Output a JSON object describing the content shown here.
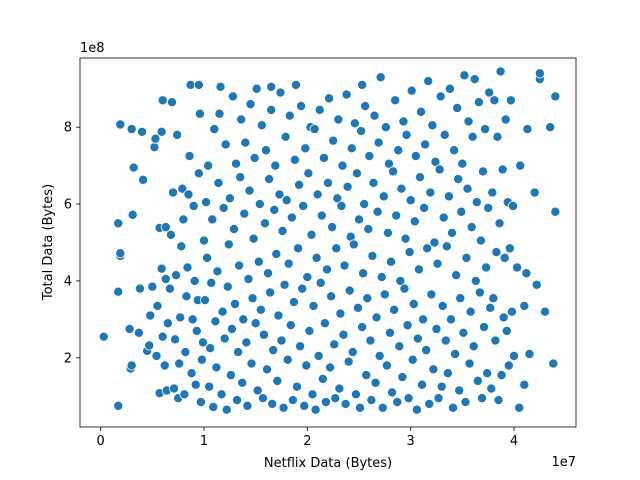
{
  "chart_data": {
    "type": "scatter",
    "title": "",
    "xlabel": "Netflix Data (Bytes)",
    "ylabel": "Total Data (Bytes)",
    "x_offset_label": "1e7",
    "y_offset_label": "1e8",
    "xlim": [
      -0.2,
      4.6
    ],
    "ylim": [
      0.2,
      9.8
    ],
    "xticks": [
      0,
      1,
      2,
      3,
      4
    ],
    "yticks": [
      2,
      4,
      6,
      8
    ],
    "xtick_labels": [
      "0",
      "1",
      "2",
      "3",
      "4"
    ],
    "ytick_labels": [
      "2",
      "4",
      "6",
      "8"
    ],
    "grid": false,
    "marker_color": "#1f77b4",
    "marker_edge_color": "#ffffff",
    "points": [
      [
        0.03,
        2.55
      ],
      [
        0.17,
        0.75
      ],
      [
        0.17,
        3.72
      ],
      [
        0.19,
        4.65
      ],
      [
        0.19,
        4.72
      ],
      [
        0.17,
        5.5
      ],
      [
        0.19,
        8.07
      ],
      [
        0.28,
        2.75
      ],
      [
        0.29,
        1.72
      ],
      [
        0.3,
        1.8
      ],
      [
        0.31,
        5.72
      ],
      [
        0.32,
        6.95
      ],
      [
        0.3,
        7.95
      ],
      [
        0.37,
        2.65
      ],
      [
        0.38,
        3.8
      ],
      [
        0.4,
        7.88
      ],
      [
        0.41,
        6.63
      ],
      [
        0.45,
        2.18
      ],
      [
        0.47,
        2.32
      ],
      [
        0.48,
        3.1
      ],
      [
        0.5,
        3.85
      ],
      [
        0.52,
        7.48
      ],
      [
        0.53,
        7.7
      ],
      [
        0.54,
        2.05
      ],
      [
        0.55,
        3.35
      ],
      [
        0.57,
        5.38
      ],
      [
        0.57,
        1.08
      ],
      [
        0.59,
        4.32
      ],
      [
        0.59,
        7.88
      ],
      [
        0.6,
        8.7
      ],
      [
        0.6,
        2.55
      ],
      [
        0.62,
        1.8
      ],
      [
        0.63,
        4.05
      ],
      [
        0.63,
        5.4
      ],
      [
        0.64,
        1.15
      ],
      [
        0.65,
        2.9
      ],
      [
        0.67,
        3.8
      ],
      [
        0.68,
        5.2
      ],
      [
        0.69,
        8.65
      ],
      [
        0.7,
        6.3
      ],
      [
        0.71,
        1.2
      ],
      [
        0.72,
        2.48
      ],
      [
        0.73,
        4.15
      ],
      [
        0.74,
        7.8
      ],
      [
        0.75,
        0.95
      ],
      [
        0.76,
        1.85
      ],
      [
        0.77,
        3.05
      ],
      [
        0.78,
        4.9
      ],
      [
        0.79,
        6.4
      ],
      [
        0.8,
        5.6
      ],
      [
        0.81,
        1.05
      ],
      [
        0.82,
        2.15
      ],
      [
        0.83,
        3.6
      ],
      [
        0.84,
        4.35
      ],
      [
        0.85,
        6.25
      ],
      [
        0.86,
        7.25
      ],
      [
        0.87,
        9.1
      ],
      [
        0.88,
        1.6
      ],
      [
        0.89,
        3.0
      ],
      [
        0.9,
        5.95
      ],
      [
        0.91,
        4.0
      ],
      [
        0.92,
        1.3
      ],
      [
        0.93,
        2.7
      ],
      [
        0.94,
        3.5
      ],
      [
        0.95,
        6.8
      ],
      [
        0.96,
        8.35
      ],
      [
        0.97,
        0.85
      ],
      [
        0.98,
        1.95
      ],
      [
        0.99,
        2.4
      ],
      [
        1.0,
        5.05
      ],
      [
        1.01,
        3.5
      ],
      [
        1.02,
        6.05
      ],
      [
        1.03,
        4.6
      ],
      [
        1.04,
        7.0
      ],
      [
        1.05,
        1.25
      ],
      [
        1.06,
        2.25
      ],
      [
        1.07,
        3.95
      ],
      [
        1.08,
        5.6
      ],
      [
        1.09,
        0.72
      ],
      [
        1.1,
        7.95
      ],
      [
        1.11,
        2.95
      ],
      [
        1.12,
        1.75
      ],
      [
        1.13,
        4.25
      ],
      [
        1.14,
        6.55
      ],
      [
        1.15,
        8.35
      ],
      [
        1.16,
        9.05
      ],
      [
        1.17,
        1.05
      ],
      [
        1.18,
        3.2
      ],
      [
        1.19,
        5.9
      ],
      [
        1.2,
        2.5
      ],
      [
        1.21,
        7.55
      ],
      [
        1.22,
        0.65
      ],
      [
        1.23,
        3.85
      ],
      [
        1.24,
        4.95
      ],
      [
        1.25,
        6.15
      ],
      [
        1.26,
        1.55
      ],
      [
        1.27,
        2.75
      ],
      [
        1.28,
        8.8
      ],
      [
        1.29,
        5.35
      ],
      [
        1.3,
        3.4
      ],
      [
        1.31,
        7.05
      ],
      [
        1.32,
        0.9
      ],
      [
        1.33,
        2.15
      ],
      [
        1.34,
        4.4
      ],
      [
        1.35,
        6.7
      ],
      [
        1.36,
        8.2
      ],
      [
        1.37,
        1.35
      ],
      [
        1.38,
        3.0
      ],
      [
        1.39,
        5.75
      ],
      [
        1.4,
        7.6
      ],
      [
        1.41,
        2.4
      ],
      [
        1.42,
        0.75
      ],
      [
        1.43,
        4.05
      ],
      [
        1.44,
        6.35
      ],
      [
        1.45,
        8.6
      ],
      [
        1.46,
        1.85
      ],
      [
        1.47,
        3.55
      ],
      [
        1.48,
        5.1
      ],
      [
        1.49,
        7.2
      ],
      [
        1.5,
        2.9
      ],
      [
        1.51,
        9.0
      ],
      [
        1.52,
        1.15
      ],
      [
        1.53,
        4.5
      ],
      [
        1.54,
        6.0
      ],
      [
        1.55,
        3.25
      ],
      [
        1.56,
        8.05
      ],
      [
        1.57,
        0.95
      ],
      [
        1.58,
        2.6
      ],
      [
        1.59,
        5.5
      ],
      [
        1.6,
        7.4
      ],
      [
        1.61,
        1.7
      ],
      [
        1.62,
        4.2
      ],
      [
        1.63,
        6.65
      ],
      [
        1.64,
        3.7
      ],
      [
        1.65,
        8.45
      ],
      [
        1.66,
        0.8
      ],
      [
        1.67,
        2.2
      ],
      [
        1.68,
        5.85
      ],
      [
        1.69,
        7.0
      ],
      [
        1.7,
        4.7
      ],
      [
        1.71,
        1.4
      ],
      [
        1.72,
        3.1
      ],
      [
        1.73,
        6.25
      ],
      [
        1.74,
        8.9
      ],
      [
        1.75,
        2.45
      ],
      [
        1.76,
        5.3
      ],
      [
        1.77,
        0.7
      ],
      [
        1.78,
        3.9
      ],
      [
        1.79,
        7.75
      ],
      [
        1.8,
        6.1
      ],
      [
        1.81,
        1.95
      ],
      [
        1.82,
        4.45
      ],
      [
        1.83,
        8.3
      ],
      [
        1.84,
        2.85
      ],
      [
        1.85,
        5.65
      ],
      [
        1.86,
        0.9
      ],
      [
        1.87,
        3.45
      ],
      [
        1.88,
        7.15
      ],
      [
        1.89,
        9.1
      ],
      [
        1.9,
        1.25
      ],
      [
        1.91,
        4.85
      ],
      [
        1.92,
        6.5
      ],
      [
        1.93,
        2.3
      ],
      [
        1.94,
        8.55
      ],
      [
        1.95,
        3.8
      ],
      [
        1.96,
        5.95
      ],
      [
        1.97,
        0.75
      ],
      [
        1.98,
        7.45
      ],
      [
        1.99,
        1.8
      ],
      [
        2.0,
        4.1
      ],
      [
        2.01,
        6.8
      ],
      [
        2.02,
        2.7
      ],
      [
        2.03,
        8.0
      ],
      [
        2.04,
        5.2
      ],
      [
        2.05,
        1.05
      ],
      [
        2.06,
        3.35
      ],
      [
        2.07,
        7.95
      ],
      [
        2.08,
        0.65
      ],
      [
        2.09,
        4.6
      ],
      [
        2.1,
        6.25
      ],
      [
        2.11,
        2.05
      ],
      [
        2.12,
        8.45
      ],
      [
        2.13,
        3.95
      ],
      [
        2.14,
        5.7
      ],
      [
        2.15,
        1.45
      ],
      [
        2.16,
        7.2
      ],
      [
        2.17,
        2.9
      ],
      [
        2.18,
        0.85
      ],
      [
        2.19,
        4.3
      ],
      [
        2.2,
        6.55
      ],
      [
        2.21,
        8.75
      ],
      [
        2.22,
        1.75
      ],
      [
        2.23,
        3.6
      ],
      [
        2.24,
        5.4
      ],
      [
        2.25,
        7.65
      ],
      [
        2.26,
        2.35
      ],
      [
        2.27,
        0.95
      ],
      [
        2.28,
        4.85
      ],
      [
        2.29,
        6.15
      ],
      [
        2.3,
        8.2
      ],
      [
        2.31,
        1.2
      ],
      [
        2.32,
        3.15
      ],
      [
        2.33,
        5.95
      ],
      [
        2.34,
        7.0
      ],
      [
        2.35,
        2.6
      ],
      [
        2.36,
        4.4
      ],
      [
        2.37,
        0.8
      ],
      [
        2.38,
        8.85
      ],
      [
        2.39,
        6.45
      ],
      [
        2.4,
        1.9
      ],
      [
        2.41,
        3.75
      ],
      [
        2.42,
        5.15
      ],
      [
        2.43,
        7.45
      ],
      [
        2.44,
        2.15
      ],
      [
        2.45,
        4.95
      ],
      [
        2.46,
        8.1
      ],
      [
        2.47,
        1.05
      ],
      [
        2.48,
        6.8
      ],
      [
        2.49,
        3.3
      ],
      [
        2.5,
        5.6
      ],
      [
        2.51,
        0.7
      ],
      [
        2.52,
        7.9
      ],
      [
        2.53,
        2.8
      ],
      [
        2.54,
        4.2
      ],
      [
        2.55,
        6.0
      ],
      [
        2.56,
        8.55
      ],
      [
        2.57,
        1.55
      ],
      [
        2.58,
        3.55
      ],
      [
        2.59,
        5.35
      ],
      [
        2.6,
        7.25
      ],
      [
        2.61,
        2.45
      ],
      [
        2.62,
        0.9
      ],
      [
        2.63,
        4.65
      ],
      [
        2.64,
        6.55
      ],
      [
        2.65,
        8.3
      ],
      [
        2.66,
        1.35
      ],
      [
        2.67,
        3.05
      ],
      [
        2.68,
        5.8
      ],
      [
        2.69,
        7.6
      ],
      [
        2.7,
        2.05
      ],
      [
        2.71,
        9.3
      ],
      [
        2.72,
        4.1
      ],
      [
        2.73,
        0.7
      ],
      [
        2.74,
        6.2
      ],
      [
        2.75,
        3.65
      ],
      [
        2.76,
        8.0
      ],
      [
        2.77,
        1.8
      ],
      [
        2.78,
        5.25
      ],
      [
        2.79,
        7.05
      ],
      [
        2.8,
        2.65
      ],
      [
        2.81,
        4.5
      ],
      [
        2.82,
        1.1
      ],
      [
        2.83,
        6.85
      ],
      [
        2.84,
        3.25
      ],
      [
        2.85,
        8.7
      ],
      [
        2.86,
        5.7
      ],
      [
        2.87,
        0.85
      ],
      [
        2.88,
        7.4
      ],
      [
        2.89,
        2.3
      ],
      [
        2.9,
        4.0
      ],
      [
        2.91,
        6.4
      ],
      [
        2.92,
        1.5
      ],
      [
        2.93,
        8.15
      ],
      [
        2.94,
        3.8
      ],
      [
        2.95,
        5.1
      ],
      [
        2.96,
        7.8
      ],
      [
        2.97,
        2.85
      ],
      [
        2.98,
        0.95
      ],
      [
        2.99,
        4.75
      ],
      [
        3.0,
        6.1
      ],
      [
        3.01,
        8.95
      ],
      [
        3.02,
        1.95
      ],
      [
        3.03,
        3.4
      ],
      [
        3.04,
        5.55
      ],
      [
        3.05,
        7.25
      ],
      [
        3.06,
        0.65
      ],
      [
        3.07,
        2.5
      ],
      [
        3.08,
        4.3
      ],
      [
        3.09,
        6.7
      ],
      [
        3.1,
        8.4
      ],
      [
        3.11,
        1.3
      ],
      [
        3.12,
        3.0
      ],
      [
        3.13,
        5.9
      ],
      [
        3.14,
        7.55
      ],
      [
        3.15,
        2.2
      ],
      [
        3.16,
        4.85
      ],
      [
        3.17,
        9.2
      ],
      [
        3.18,
        0.8
      ],
      [
        3.19,
        6.3
      ],
      [
        3.2,
        3.65
      ],
      [
        3.21,
        8.05
      ],
      [
        3.22,
        1.7
      ],
      [
        3.23,
        5.0
      ],
      [
        3.24,
        7.1
      ],
      [
        3.25,
        2.75
      ],
      [
        3.26,
        4.45
      ],
      [
        3.27,
        0.95
      ],
      [
        3.28,
        6.9
      ],
      [
        3.29,
        8.8
      ],
      [
        3.3,
        1.25
      ],
      [
        3.31,
        3.35
      ],
      [
        3.32,
        5.65
      ],
      [
        3.33,
        7.8
      ],
      [
        3.34,
        2.45
      ],
      [
        3.35,
        4.9
      ],
      [
        3.36,
        1.6
      ],
      [
        3.37,
        6.2
      ],
      [
        3.38,
        9.0
      ],
      [
        3.39,
        3.0
      ],
      [
        3.4,
        5.25
      ],
      [
        3.41,
        0.7
      ],
      [
        3.42,
        7.4
      ],
      [
        3.43,
        2.1
      ],
      [
        3.44,
        4.15
      ],
      [
        3.45,
        8.5
      ],
      [
        3.46,
        6.65
      ],
      [
        3.47,
        1.15
      ],
      [
        3.48,
        3.55
      ],
      [
        3.49,
        5.8
      ],
      [
        3.5,
        7.05
      ],
      [
        3.51,
        2.65
      ],
      [
        3.52,
        9.35
      ],
      [
        3.53,
        0.85
      ],
      [
        3.54,
        4.6
      ],
      [
        3.55,
        6.4
      ],
      [
        3.56,
        8.15
      ],
      [
        3.57,
        1.85
      ],
      [
        3.58,
        3.2
      ],
      [
        3.59,
        5.4
      ],
      [
        3.6,
        7.75
      ],
      [
        3.61,
        2.3
      ],
      [
        3.62,
        9.25
      ],
      [
        3.63,
        4.0
      ],
      [
        3.64,
        6.05
      ],
      [
        3.65,
        1.4
      ],
      [
        3.66,
        8.65
      ],
      [
        3.67,
        3.7
      ],
      [
        3.68,
        5.05
      ],
      [
        3.69,
        0.95
      ],
      [
        3.7,
        6.85
      ],
      [
        3.71,
        2.8
      ],
      [
        3.72,
        7.95
      ],
      [
        3.73,
        4.35
      ],
      [
        3.74,
        1.6
      ],
      [
        3.75,
        5.9
      ],
      [
        3.76,
        8.9
      ],
      [
        3.77,
        3.3
      ],
      [
        3.78,
        1.2
      ],
      [
        3.79,
        6.3
      ],
      [
        3.8,
        3.55
      ],
      [
        3.81,
        8.7
      ],
      [
        3.82,
        2.45
      ],
      [
        3.83,
        4.75
      ],
      [
        3.84,
        7.75
      ],
      [
        3.85,
        0.9
      ],
      [
        3.86,
        5.5
      ],
      [
        3.87,
        9.45
      ],
      [
        3.88,
        1.55
      ],
      [
        3.89,
        6.9
      ],
      [
        3.9,
        3.05
      ],
      [
        3.91,
        4.6
      ],
      [
        3.92,
        8.2
      ],
      [
        3.93,
        2.7
      ],
      [
        3.94,
        6.05
      ],
      [
        3.95,
        1.8
      ],
      [
        3.96,
        4.85
      ],
      [
        3.97,
        8.7
      ],
      [
        3.98,
        3.2
      ],
      [
        3.99,
        5.95
      ],
      [
        4.0,
        2.05
      ],
      [
        4.03,
        4.35
      ],
      [
        4.06,
        7.0
      ],
      [
        4.1,
        1.3
      ],
      [
        4.1,
        3.35
      ],
      [
        4.12,
        4.2
      ],
      [
        4.13,
        7.95
      ],
      [
        4.15,
        2.1
      ],
      [
        4.2,
        6.3
      ],
      [
        4.22,
        3.9
      ],
      [
        4.25,
        9.25
      ],
      [
        4.25,
        9.4
      ],
      [
        4.3,
        3.2
      ],
      [
        4.35,
        8.0
      ],
      [
        4.4,
        5.8
      ],
      [
        4.4,
        8.8
      ],
      [
        4.38,
        1.85
      ],
      [
        4.05,
        0.7
      ],
      [
        0.95,
        9.1
      ],
      [
        1.65,
        9.05
      ],
      [
        2.53,
        9.1
      ]
    ]
  }
}
